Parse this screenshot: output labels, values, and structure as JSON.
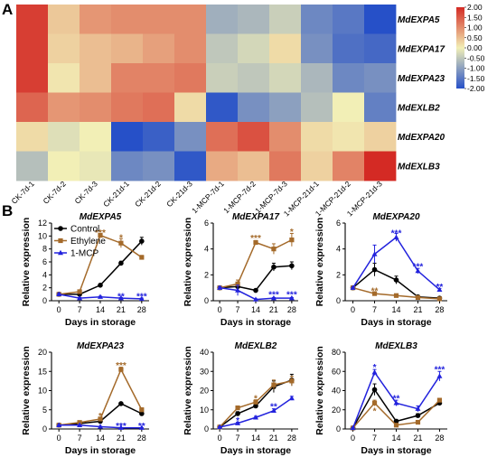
{
  "panel_labels": {
    "heatmap": "A",
    "lines": "B"
  },
  "colors": {
    "control": "#000000",
    "ethylene": "#a46a2a",
    "mcp": "#2222dd"
  },
  "chart_data": [
    {
      "type": "heatmap",
      "rows": [
        "MdEXPA5",
        "MdEXPA17",
        "MdEXPA23",
        "MdEXLB2",
        "MdEXPA20",
        "MdEXLB3"
      ],
      "columns": [
        "CK-7d-1",
        "CK-7d-2",
        "CK-7d-3",
        "CK-21d-1",
        "CK-21d-2",
        "CK-21d-3",
        "1-MCP-7d-1",
        "1-MCP-7d-2",
        "1-MCP-7d-3",
        "1-MCP-21d-1",
        "1-MCP-21d-2",
        "1-MCP-21d-3"
      ],
      "values": [
        [
          1.8,
          0.4,
          0.9,
          1.0,
          1.0,
          1.0,
          -0.8,
          -0.7,
          -0.4,
          -1.3,
          -1.5,
          -2.0
        ],
        [
          1.8,
          0.3,
          0.5,
          0.6,
          0.8,
          1.0,
          -0.5,
          -0.3,
          0.2,
          -1.2,
          -1.6,
          -1.7
        ],
        [
          1.8,
          0.1,
          0.5,
          1.1,
          1.1,
          1.2,
          -0.4,
          -0.5,
          -0.3,
          -0.7,
          -1.3,
          -1.2
        ],
        [
          1.4,
          0.9,
          1.0,
          1.2,
          1.3,
          0.2,
          -1.9,
          -1.2,
          -1.0,
          -0.6,
          0.0,
          -1.4
        ],
        [
          0.2,
          -0.2,
          0.0,
          -2.0,
          -1.8,
          -1.2,
          1.3,
          1.6,
          1.0,
          0.2,
          0.1,
          0.3
        ],
        [
          -0.6,
          0.0,
          -0.1,
          -1.3,
          -1.2,
          -1.9,
          0.7,
          0.5,
          1.2,
          0.3,
          1.1,
          2.0
        ]
      ],
      "colorbar": {
        "ticks": [
          "2.00",
          "1.50",
          "1.00",
          "0.50",
          "0.00",
          "-0.50",
          "-1.00",
          "-1.50",
          "-2.00"
        ],
        "range": [
          -2,
          2
        ],
        "colors": [
          "#2650c8",
          "#f2efb6",
          "#d42a24"
        ]
      }
    },
    {
      "type": "line",
      "title": "MdEXPA5",
      "xlabel": "Days in storage",
      "ylabel": "Relative expression",
      "x": [
        0,
        7,
        14,
        21,
        28
      ],
      "ylim": [
        0,
        12
      ],
      "yticks": [
        0,
        2,
        4,
        6,
        8,
        10,
        12
      ],
      "legend_position": "top-left",
      "series": [
        {
          "name": "Control",
          "values": [
            1.0,
            1.0,
            2.4,
            5.8,
            9.2
          ],
          "errors": [
            0.15,
            0.15,
            0.2,
            0.3,
            0.6
          ]
        },
        {
          "name": "Ethylene",
          "values": [
            1.0,
            1.4,
            10.1,
            8.9,
            6.7
          ],
          "errors": [
            0.15,
            0.2,
            0.3,
            0.7,
            0.3
          ]
        },
        {
          "name": "1-MCP",
          "values": [
            1.0,
            0.4,
            0.6,
            0.4,
            0.3
          ],
          "errors": [
            0.15,
            0.1,
            0.1,
            0.1,
            0.1
          ]
        }
      ],
      "annotations": [
        {
          "x": 14,
          "y": 10.5,
          "text": "***",
          "series": "Ethylene"
        },
        {
          "x": 21,
          "y": 9.7,
          "text": "*",
          "series": "Ethylene"
        },
        {
          "x": 21,
          "y": 0.6,
          "text": "**",
          "series": "1-MCP"
        },
        {
          "x": 28,
          "y": 0.6,
          "text": "***",
          "series": "1-MCP"
        }
      ]
    },
    {
      "type": "line",
      "title": "MdEXPA17",
      "xlabel": "Days in storage",
      "ylabel": "Relative expression",
      "x": [
        0,
        7,
        14,
        21,
        28
      ],
      "ylim": [
        0,
        6
      ],
      "yticks": [
        0,
        2,
        4,
        6
      ],
      "series": [
        {
          "name": "Control",
          "values": [
            1.0,
            1.1,
            0.8,
            2.6,
            2.7
          ],
          "errors": [
            0.1,
            0.2,
            0.1,
            0.3,
            0.3
          ]
        },
        {
          "name": "Ethylene",
          "values": [
            1.0,
            1.3,
            4.5,
            4.0,
            4.7
          ],
          "errors": [
            0.1,
            0.3,
            0.15,
            0.4,
            0.5
          ]
        },
        {
          "name": "1-MCP",
          "values": [
            1.0,
            0.8,
            0.1,
            0.2,
            0.2
          ],
          "errors": [
            0.1,
            0.4,
            0.05,
            0.05,
            0.05
          ]
        }
      ],
      "annotations": [
        {
          "x": 14,
          "y": 4.8,
          "text": "***",
          "series": "Ethylene"
        },
        {
          "x": 28,
          "y": 5.3,
          "text": "*",
          "series": "Ethylene"
        },
        {
          "x": 21,
          "y": 0.45,
          "text": "***",
          "series": "1-MCP"
        },
        {
          "x": 28,
          "y": 0.45,
          "text": "***",
          "series": "1-MCP"
        }
      ]
    },
    {
      "type": "line",
      "title": "MdEXPA20",
      "xlabel": "Days in storage",
      "ylabel": "Relative expression",
      "x": [
        0,
        7,
        14,
        21,
        28
      ],
      "ylim": [
        0,
        6
      ],
      "yticks": [
        0,
        2,
        4,
        6
      ],
      "series": [
        {
          "name": "Control",
          "values": [
            1.0,
            2.4,
            1.6,
            0.3,
            0.2
          ],
          "errors": [
            0.05,
            0.5,
            0.3,
            0.05,
            0.05
          ]
        },
        {
          "name": "Ethylene",
          "values": [
            1.0,
            0.55,
            0.4,
            0.25,
            0.15
          ],
          "errors": [
            0.05,
            0.1,
            0.1,
            0.05,
            0.05
          ]
        },
        {
          "name": "1-MCP",
          "values": [
            1.0,
            3.6,
            4.9,
            2.3,
            0.85
          ],
          "errors": [
            0.05,
            0.7,
            0.3,
            0.2,
            0.1
          ]
        }
      ],
      "annotations": [
        {
          "x": 7,
          "y": 0.75,
          "text": "**",
          "series": "Ethylene"
        },
        {
          "x": 14,
          "y": 5.2,
          "text": "***",
          "series": "1-MCP"
        },
        {
          "x": 21,
          "y": 2.6,
          "text": "***",
          "series": "1-MCP"
        },
        {
          "x": 28,
          "y": 1.05,
          "text": "**",
          "series": "1-MCP"
        }
      ]
    },
    {
      "type": "line",
      "title": "MdEXPA23",
      "xlabel": "Days in storage",
      "ylabel": "Relative expression",
      "x": [
        0,
        7,
        14,
        21,
        28
      ],
      "ylim": [
        0,
        20
      ],
      "yticks": [
        0,
        5,
        10,
        15,
        20
      ],
      "series": [
        {
          "name": "Control",
          "values": [
            1.0,
            1.4,
            2.0,
            6.6,
            4.0
          ],
          "errors": [
            0.1,
            0.2,
            0.3,
            0.3,
            0.3
          ]
        },
        {
          "name": "Ethylene",
          "values": [
            1.0,
            1.7,
            2.6,
            15.5,
            5.0
          ],
          "errors": [
            0.1,
            0.2,
            0.3,
            0.6,
            0.5
          ]
        },
        {
          "name": "1-MCP",
          "values": [
            1.0,
            1.0,
            0.6,
            0.3,
            0.3
          ],
          "errors": [
            0.1,
            0.1,
            0.1,
            0.05,
            0.05
          ]
        }
      ],
      "annotations": [
        {
          "x": 14,
          "y": 3.3,
          "text": "*",
          "series": "Ethylene"
        },
        {
          "x": 21,
          "y": 16.5,
          "text": "***",
          "series": "Ethylene"
        },
        {
          "x": 21,
          "y": 0.7,
          "text": "***",
          "series": "1-MCP"
        },
        {
          "x": 28,
          "y": 0.7,
          "text": "**",
          "series": "1-MCP"
        }
      ]
    },
    {
      "type": "line",
      "title": "MdEXLB2",
      "xlabel": "Days in storage",
      "ylabel": "Relative expression",
      "x": [
        0,
        7,
        14,
        21,
        28
      ],
      "ylim": [
        0,
        40
      ],
      "yticks": [
        0,
        10,
        20,
        30,
        40
      ],
      "series": [
        {
          "name": "Control",
          "values": [
            1.0,
            8.0,
            12.0,
            22.0,
            25.5
          ],
          "errors": [
            0.2,
            1.0,
            1.2,
            3.0,
            3.0
          ]
        },
        {
          "name": "Ethylene",
          "values": [
            1.0,
            11.0,
            14.0,
            23.0,
            25.0
          ],
          "errors": [
            0.2,
            1.0,
            1.2,
            2.5,
            2.5
          ]
        },
        {
          "name": "1-MCP",
          "values": [
            1.0,
            3.0,
            6.0,
            9.5,
            16.0
          ],
          "errors": [
            0.2,
            0.5,
            0.6,
            1.0,
            1.0
          ]
        }
      ],
      "annotations": [
        {
          "x": 14,
          "y": 15.8,
          "text": "*",
          "series": "Ethylene"
        },
        {
          "x": 7,
          "y": 4.2,
          "text": "*",
          "series": "1-MCP"
        },
        {
          "x": 21,
          "y": 11.5,
          "text": "**",
          "series": "1-MCP"
        }
      ]
    },
    {
      "type": "line",
      "title": "MdEXLB3",
      "xlabel": "Days in storage",
      "ylabel": "Relative expression",
      "x": [
        0,
        7,
        14,
        21,
        28
      ],
      "ylim": [
        0,
        80
      ],
      "yticks": [
        0,
        20,
        40,
        60,
        80
      ],
      "series": [
        {
          "name": "Control",
          "values": [
            1.0,
            41.0,
            8.0,
            14.0,
            27.0
          ],
          "errors": [
            0.5,
            6.0,
            2.0,
            2.0,
            2.0
          ]
        },
        {
          "name": "Ethylene",
          "values": [
            1.0,
            27.0,
            4.0,
            7.0,
            30.0
          ],
          "errors": [
            0.5,
            3.0,
            1.0,
            1.5,
            2.0
          ]
        },
        {
          "name": "1-MCP",
          "values": [
            1.0,
            59.0,
            27.0,
            21.0,
            55.0
          ],
          "errors": [
            0.5,
            3.0,
            3.0,
            3.0,
            5.0
          ]
        }
      ],
      "annotations": [
        {
          "x": 7,
          "y": 64.0,
          "text": "*",
          "series": "1-MCP"
        },
        {
          "x": 7,
          "y": 18.5,
          "text": "*",
          "series": "Ethylene"
        },
        {
          "x": 14,
          "y": 31.5,
          "text": "**",
          "series": "1-MCP"
        },
        {
          "x": 28,
          "y": 61.5,
          "text": "***",
          "series": "1-MCP"
        }
      ]
    }
  ]
}
